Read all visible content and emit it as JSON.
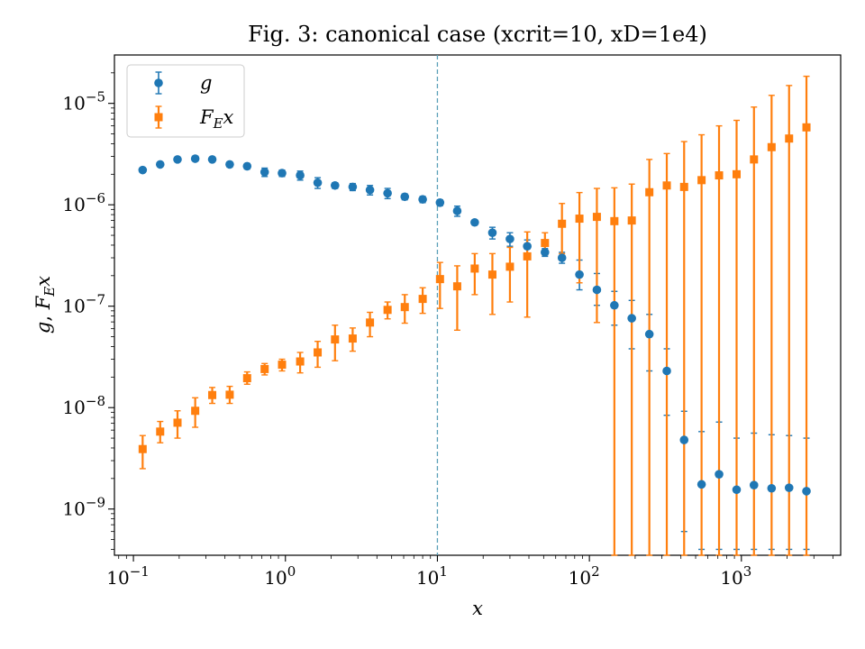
{
  "chart_data": {
    "type": "scatter",
    "title": "Fig. 3: canonical case (xcrit=10, xD=1e4)",
    "xlabel": "x",
    "ylabel": "g, F_E x",
    "xscale": "log",
    "yscale": "log",
    "xlim": [
      0.075,
      4500
    ],
    "ylim": [
      3.5e-10,
      3e-05
    ],
    "x_ticks": [
      {
        "value": 0.1,
        "base": "10",
        "exp": "−1"
      },
      {
        "value": 1,
        "base": "10",
        "exp": "0"
      },
      {
        "value": 10,
        "base": "10",
        "exp": "1"
      },
      {
        "value": 100,
        "base": "10",
        "exp": "2"
      },
      {
        "value": 1000,
        "base": "10",
        "exp": "3"
      }
    ],
    "y_ticks": [
      {
        "value": 1e-09,
        "base": "10",
        "exp": "−9"
      },
      {
        "value": 1e-08,
        "base": "10",
        "exp": "−8"
      },
      {
        "value": 1e-07,
        "base": "10",
        "exp": "−7"
      },
      {
        "value": 1e-06,
        "base": "10",
        "exp": "−6"
      },
      {
        "value": 1e-05,
        "base": "10",
        "exp": "−5"
      }
    ],
    "vline": {
      "x": 10,
      "color": "#5aa0b8",
      "style": "dashed"
    },
    "legend": {
      "position": "top-left"
    },
    "x": [
      0.115,
      0.15,
      0.195,
      0.255,
      0.33,
      0.43,
      0.56,
      0.73,
      0.95,
      1.25,
      1.63,
      2.12,
      2.77,
      3.6,
      4.7,
      6.1,
      8.0,
      10.4,
      13.5,
      17.6,
      23.0,
      30.0,
      39.0,
      51.0,
      66.0,
      86.0,
      112.0,
      146.0,
      190.0,
      248.0,
      323.0,
      420.0,
      547.0,
      713.0,
      930.0,
      1210.0,
      1580.0,
      2060.0,
      2680.0
    ],
    "series": [
      {
        "name": "g",
        "color": "#1f77b4",
        "marker": "circle",
        "values": [
          2.2e-06,
          2.5e-06,
          2.8e-06,
          2.85e-06,
          2.8e-06,
          2.5e-06,
          2.4e-06,
          2.1e-06,
          2.05e-06,
          1.95e-06,
          1.65e-06,
          1.55e-06,
          1.5e-06,
          1.4e-06,
          1.3e-06,
          1.2e-06,
          1.13e-06,
          1.05e-06,
          8.7e-07,
          6.7e-07,
          5.3e-07,
          4.6e-07,
          3.9e-07,
          3.4e-07,
          3e-07,
          2.05e-07,
          1.45e-07,
          1.02e-07,
          7.6e-08,
          5.3e-08,
          2.3e-08,
          4.8e-09,
          1.75e-09,
          2.2e-09,
          1.55e-09,
          1.72e-09,
          1.6e-09,
          1.62e-09,
          1.5e-09
        ],
        "err_low": [
          2.1e-06,
          2.42e-06,
          2.68e-06,
          2.7e-06,
          2.65e-06,
          2.35e-06,
          2.25e-06,
          1.9e-06,
          1.9e-06,
          1.75e-06,
          1.45e-06,
          1.45e-06,
          1.38e-06,
          1.25e-06,
          1.15e-06,
          1.12e-06,
          1.05e-06,
          9.8e-07,
          7.7e-07,
          6.4e-07,
          4.6e-07,
          3.9e-07,
          3.3e-07,
          3.1e-07,
          2.65e-07,
          1.45e-07,
          1.02e-07,
          6.5e-08,
          3.8e-08,
          2.3e-08,
          8.4e-09,
          6e-10,
          4e-10,
          4e-10,
          4e-10,
          4e-10,
          4e-10,
          4e-10,
          4e-10
        ],
        "err_high": [
          2.3e-06,
          2.58e-06,
          2.92e-06,
          3e-06,
          2.95e-06,
          2.65e-06,
          2.55e-06,
          2.3e-06,
          2.2e-06,
          2.15e-06,
          1.85e-06,
          1.65e-06,
          1.62e-06,
          1.55e-06,
          1.45e-06,
          1.28e-06,
          1.21e-06,
          1.12e-06,
          9.7e-07,
          7e-07,
          6e-07,
          5.3e-07,
          4.5e-07,
          3.7e-07,
          3.4e-07,
          2.85e-07,
          2.1e-07,
          1.4e-07,
          1.14e-07,
          8.3e-08,
          3.8e-08,
          9.2e-09,
          5.8e-09,
          7.2e-09,
          5e-09,
          5.6e-09,
          5.4e-09,
          5.3e-09,
          5e-09
        ]
      },
      {
        "name": "F_E x",
        "color": "#ff7f0e",
        "marker": "square",
        "values": [
          3.9e-09,
          5.8e-09,
          7.1e-09,
          9.3e-09,
          1.33e-08,
          1.34e-08,
          1.95e-08,
          2.4e-08,
          2.65e-08,
          2.85e-08,
          3.5e-08,
          4.7e-08,
          4.8e-08,
          6.9e-08,
          9.2e-08,
          9.8e-08,
          1.18e-07,
          1.85e-07,
          1.57e-07,
          2.35e-07,
          2.05e-07,
          2.45e-07,
          3.1e-07,
          4.2e-07,
          6.5e-07,
          7.3e-07,
          7.6e-07,
          6.9e-07,
          7e-07,
          1.33e-06,
          1.55e-06,
          1.5e-06,
          1.75e-06,
          1.95e-06,
          2e-06,
          2.8e-06,
          3.7e-06,
          4.5e-06,
          5.8e-06
        ],
        "err_low": [
          2.5e-09,
          4.5e-09,
          5e-09,
          6.4e-09,
          1.1e-08,
          1.1e-08,
          1.7e-08,
          2.1e-08,
          2.3e-08,
          2.2e-08,
          2.5e-08,
          2.9e-08,
          3.6e-08,
          5e-08,
          7.5e-08,
          6.8e-08,
          8.5e-08,
          9.5e-08,
          5.8e-08,
          1.3e-07,
          8.3e-08,
          1.1e-07,
          7.8e-08,
          3.2e-07,
          3.3e-07,
          1.7e-07,
          6.9e-08,
          3.5e-10,
          3.5e-10,
          3.5e-10,
          3.5e-10,
          3.5e-10,
          3.5e-10,
          3.5e-10,
          3.5e-10,
          3.5e-10,
          3.5e-10,
          3.5e-10,
          3.5e-10
        ],
        "err_high": [
          5.3e-09,
          7.3e-09,
          9.3e-09,
          1.25e-08,
          1.58e-08,
          1.62e-08,
          2.25e-08,
          2.72e-08,
          3e-08,
          3.5e-08,
          4.5e-08,
          6.5e-08,
          6.1e-08,
          8.7e-08,
          1.1e-07,
          1.3e-07,
          1.52e-07,
          2.7e-07,
          2.5e-07,
          3.3e-07,
          3.3e-07,
          3.8e-07,
          5.4e-07,
          5.3e-07,
          1.03e-06,
          1.32e-06,
          1.45e-06,
          1.47e-06,
          1.6e-06,
          2.8e-06,
          3.2e-06,
          4.2e-06,
          4.9e-06,
          6e-06,
          6.8e-06,
          9.2e-06,
          1.2e-05,
          1.5e-05,
          1.85e-05
        ]
      }
    ]
  }
}
